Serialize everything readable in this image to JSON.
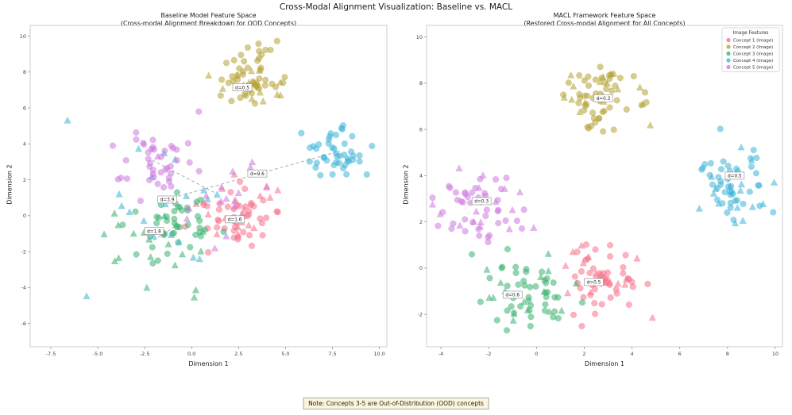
{
  "figure": {
    "title": "Cross-Modal Alignment Visualization: Baseline vs. MACL"
  },
  "note": "Note: Concepts 3-5 are Out-of-Distribution (OOD) concepts",
  "chart_data": [
    {
      "type": "scatter",
      "title": "Baseline Model Feature Space",
      "subtitle": "(Cross-modal Alignment Breakdown for OOD Concepts)",
      "xlabel": "Dimension 1",
      "ylabel": "Dimension 2",
      "xlim": [
        -8.6,
        10.4
      ],
      "ylim": [
        -7.3,
        10.6
      ],
      "xticks": [
        -7.5,
        -5.0,
        -2.5,
        0.0,
        2.5,
        5.0,
        7.5,
        10.0
      ],
      "xtick_labels": [
        "-7.5",
        "-5.0",
        "-2.5",
        "0.0",
        "2.5",
        "5.0",
        "7.5",
        "10.0"
      ],
      "yticks": [
        -6,
        -4,
        -2,
        0,
        2,
        4,
        6,
        8,
        10
      ],
      "ytick_labels": [
        "-6",
        "-4",
        "-2",
        "0",
        "2",
        "4",
        "6",
        "8",
        "10"
      ],
      "clusters": [
        {
          "name": "Concept 1",
          "color": "#f77189",
          "image": {
            "center": [
              2.5,
              -0.2
            ],
            "sd": [
              1.1,
              0.9
            ],
            "n": 46
          },
          "text": {
            "center": [
              2.9,
              0.6
            ],
            "sd": [
              1.3,
              1.2
            ],
            "n": 18
          }
        },
        {
          "name": "Concept 2",
          "color": "#b5a335",
          "image": {
            "center": [
              3.0,
              7.6
            ],
            "sd": [
              0.9,
              0.8
            ],
            "n": 48
          },
          "text": {
            "center": [
              3.1,
              7.3
            ],
            "sd": [
              1.0,
              0.9
            ],
            "n": 16
          }
        },
        {
          "name": "Concept 3",
          "color": "#3cb371",
          "image": {
            "center": [
              -0.9,
              -0.6
            ],
            "sd": [
              1.0,
              1.0
            ],
            "n": 45
          },
          "text": {
            "center": [
              -2.0,
              -1.6
            ],
            "sd": [
              1.8,
              1.7
            ],
            "n": 18
          }
        },
        {
          "name": "Concept 4",
          "color": "#3fb5d8",
          "image": {
            "center": [
              7.9,
              3.6
            ],
            "sd": [
              0.9,
              0.8
            ],
            "n": 45
          },
          "text": {
            "center": [
              -1.6,
              1.2
            ],
            "sd": [
              2.4,
              2.2
            ],
            "n": 20
          }
        },
        {
          "name": "Concept 5",
          "color": "#cd7ae0",
          "image": {
            "center": [
              -2.1,
              3.1
            ],
            "sd": [
              1.0,
              0.9
            ],
            "n": 42
          },
          "text": {
            "center": [
              1.2,
              1.3
            ],
            "sd": [
              1.8,
              1.5
            ],
            "n": 16
          }
        }
      ],
      "dashed_lines": [
        [
          [
            -2.1,
            3.1
          ],
          [
            1.2,
            1.3
          ]
        ],
        [
          [
            -1.0,
            1.0
          ],
          [
            7.9,
            3.6
          ]
        ],
        [
          [
            -0.9,
            -0.6
          ],
          [
            -2.2,
            -1.5
          ]
        ],
        [
          [
            2.5,
            -0.2
          ],
          [
            2.9,
            0.6
          ]
        ],
        [
          [
            3.0,
            7.6
          ],
          [
            3.1,
            7.3
          ]
        ]
      ],
      "annotations": [
        {
          "label": "d=0.5",
          "x": 2.7,
          "y": 7.15
        },
        {
          "label": "d=9.6",
          "x": 3.5,
          "y": 2.35
        },
        {
          "label": "d=3.9",
          "x": -1.3,
          "y": 0.9
        },
        {
          "label": "d=1.8",
          "x": -2.0,
          "y": -0.85
        },
        {
          "label": "d=1.6",
          "x": 2.3,
          "y": -0.2
        }
      ]
    },
    {
      "type": "scatter",
      "title": "MACL Framework Feature Space",
      "subtitle": "(Restored Cross-modal Alignment for All Concepts)",
      "xlabel": "Dimension 1",
      "ylabel": "Dimension 2",
      "xlim": [
        -4.6,
        10.3
      ],
      "ylim": [
        -3.4,
        10.5
      ],
      "xticks": [
        -4,
        -2,
        0,
        2,
        4,
        6,
        8,
        10
      ],
      "xtick_labels": [
        "-4",
        "-2",
        "0",
        "2",
        "4",
        "6",
        "8",
        "10"
      ],
      "yticks": [
        -2,
        0,
        2,
        4,
        6,
        8,
        10
      ],
      "ytick_labels": [
        "-2",
        "0",
        "2",
        "4",
        "6",
        "8",
        "10"
      ],
      "clusters": [
        {
          "name": "Concept 1",
          "color": "#f77189",
          "image": {
            "center": [
              2.6,
              -0.5
            ],
            "sd": [
              0.9,
              0.8
            ],
            "n": 48
          },
          "text": {
            "center": [
              2.7,
              -0.4
            ],
            "sd": [
              1.0,
              0.9
            ],
            "n": 16
          }
        },
        {
          "name": "Concept 2",
          "color": "#b5a335",
          "image": {
            "center": [
              2.7,
              7.6
            ],
            "sd": [
              0.85,
              0.8
            ],
            "n": 48
          },
          "text": {
            "center": [
              2.8,
              7.5
            ],
            "sd": [
              0.95,
              0.85
            ],
            "n": 16
          }
        },
        {
          "name": "Concept 3",
          "color": "#3cb371",
          "image": {
            "center": [
              -0.6,
              -1.1
            ],
            "sd": [
              0.9,
              0.8
            ],
            "n": 45
          },
          "text": {
            "center": [
              -0.7,
              -1.0
            ],
            "sd": [
              1.0,
              0.9
            ],
            "n": 16
          }
        },
        {
          "name": "Concept 4",
          "color": "#3fb5d8",
          "image": {
            "center": [
              8.0,
              3.7
            ],
            "sd": [
              0.85,
              0.8
            ],
            "n": 45
          },
          "text": {
            "center": [
              8.1,
              3.8
            ],
            "sd": [
              0.95,
              0.85
            ],
            "n": 16
          }
        },
        {
          "name": "Concept 5",
          "color": "#cd7ae0",
          "image": {
            "center": [
              -2.3,
              2.7
            ],
            "sd": [
              0.85,
              0.8
            ],
            "n": 42
          },
          "text": {
            "center": [
              -2.4,
              2.8
            ],
            "sd": [
              0.95,
              0.85
            ],
            "n": 16
          }
        }
      ],
      "dashed_lines": [
        [
          [
            2.6,
            -0.5
          ],
          [
            2.7,
            -0.4
          ]
        ],
        [
          [
            2.7,
            7.6
          ],
          [
            2.8,
            7.5
          ]
        ],
        [
          [
            -0.6,
            -1.1
          ],
          [
            -0.7,
            -1.0
          ]
        ],
        [
          [
            8.0,
            3.7
          ],
          [
            8.1,
            3.8
          ]
        ],
        [
          [
            -2.3,
            2.7
          ],
          [
            -2.4,
            2.8
          ]
        ]
      ],
      "annotations": [
        {
          "label": "d=0.3",
          "x": 2.8,
          "y": 7.35
        },
        {
          "label": "d=0.5",
          "x": 8.3,
          "y": 4.0
        },
        {
          "label": "d=0.3",
          "x": -2.3,
          "y": 2.9
        },
        {
          "label": "d=0.6",
          "x": -1.0,
          "y": -1.15
        },
        {
          "label": "d=0.5",
          "x": 2.4,
          "y": -0.6
        }
      ],
      "legend": {
        "title": "Image Features",
        "entries": [
          {
            "label": "Concept 1 (Image)",
            "color": "#f77189"
          },
          {
            "label": "Concept 2 (Image)",
            "color": "#b5a335"
          },
          {
            "label": "Concept 3 (Image)",
            "color": "#3cb371"
          },
          {
            "label": "Concept 4 (Image)",
            "color": "#3fb5d8"
          },
          {
            "label": "Concept 5 (Image)",
            "color": "#cd7ae0"
          }
        ]
      }
    }
  ]
}
